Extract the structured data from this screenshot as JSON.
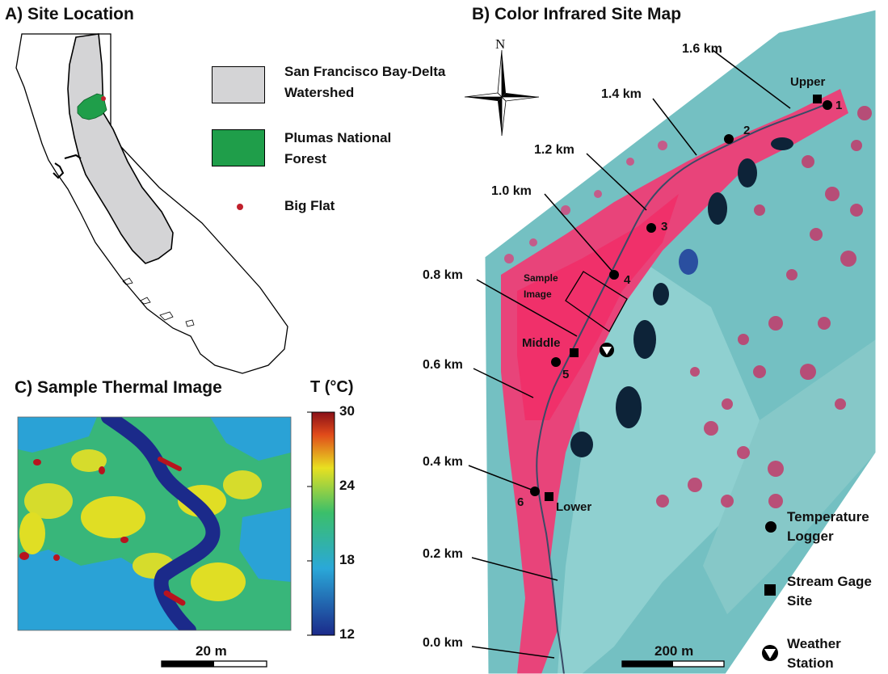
{
  "panels": {
    "a": {
      "title": "A) Site Location",
      "legend": [
        {
          "label": "San Francisco Bay-Delta Watershed",
          "color": "#d4d4d6"
        },
        {
          "label": "Plumas National Forest",
          "color": "#1f9e4a"
        },
        {
          "label": "Big Flat",
          "color": "#c0202c"
        }
      ]
    },
    "b": {
      "title": "B) Color Infrared Site Map",
      "north_label": "N",
      "distance_labels": [
        "1.6 km",
        "1.4 km",
        "1.2 km",
        "1.0 km",
        "0.8 km",
        "0.6 km",
        "0.4 km",
        "0.2 km",
        "0.0 km"
      ],
      "logger_sites": [
        "1",
        "2",
        "3",
        "4",
        "5",
        "6"
      ],
      "gage_sites": [
        "Upper",
        "Middle",
        "Lower"
      ],
      "sample_image_label": "Sample Image",
      "scale_label": "200 m",
      "legend": [
        {
          "symbol": "circle",
          "label": "Temperature Logger"
        },
        {
          "symbol": "square",
          "label": "Stream Gage Site"
        },
        {
          "symbol": "triangle-circle",
          "label": "Weather Station"
        }
      ]
    },
    "c": {
      "title": "C) Sample Thermal Image",
      "colorbar_title": "T (°C)",
      "colorbar_ticks": [
        "30",
        "24",
        "18",
        "12"
      ],
      "scale_label": "20 m",
      "colors": {
        "cold": "#1b2a8a",
        "cool": "#2aa8d8",
        "mid": "#3bbf6a",
        "warm": "#e8e021",
        "hot": "#b8141e"
      }
    }
  }
}
